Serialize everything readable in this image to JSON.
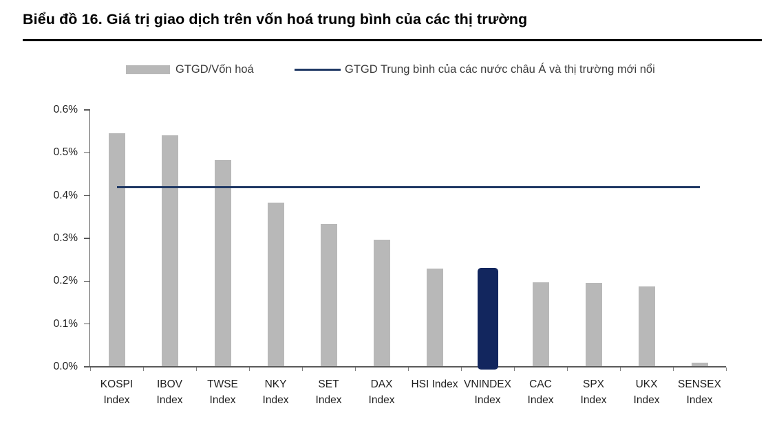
{
  "header": {
    "title": "Biểu đồ 16. Giá trị giao dịch trên vốn hoá trung bình của các thị trường"
  },
  "colors": {
    "bar": "#b8b8b8",
    "highlight_bar": "#12265e",
    "reference_line": "#1f3864",
    "axis": "#595959",
    "x_tick": "#808080",
    "text": "#1f1f1f"
  },
  "legend": [
    {
      "swatch": "bar-swatch",
      "label": "GTGD/Vốn hoá",
      "color": "#b8b8b8"
    },
    {
      "swatch": "line-swatch",
      "label": "GTGD Trung bình của các nước châu Á và thị trường mới nổi",
      "color": "#1f3864"
    }
  ],
  "chart_data": {
    "type": "bar",
    "title": "Biểu đồ 16. Giá trị giao dịch trên vốn hoá trung bình của các thị trường",
    "categories": [
      "KOSPI Index",
      "IBOV Index",
      "TWSE Index",
      "NKY Index",
      "SET Index",
      "DAX Index",
      "HSI Index",
      "VNINDEX Index",
      "CAC Index",
      "SPX Index",
      "UKX Index",
      "SENSEX Index"
    ],
    "category_label_lines": [
      [
        "KOSPI",
        "Index"
      ],
      [
        "IBOV",
        "Index"
      ],
      [
        "TWSE",
        "Index"
      ],
      [
        "NKY",
        "Index"
      ],
      [
        "SET",
        "Index"
      ],
      [
        "DAX",
        "Index"
      ],
      [
        "HSI Index"
      ],
      [
        "VNINDEX",
        "Index"
      ],
      [
        "CAC",
        "Index"
      ],
      [
        "SPX",
        "Index"
      ],
      [
        "UKX",
        "Index"
      ],
      [
        "SENSEX",
        "Index"
      ]
    ],
    "series_name": "GTGD/Vốn hoá",
    "values": [
      0.545,
      0.54,
      0.483,
      0.383,
      0.333,
      0.297,
      0.23,
      0.231,
      0.197,
      0.195,
      0.187,
      0.01
    ],
    "unit": "%",
    "highlight_index": 7,
    "reference_line": {
      "name": "GTGD Trung bình của các nước châu Á và thị trường mới nổi",
      "value": 0.42
    },
    "ylim": [
      0,
      0.6
    ],
    "ytick_step": 0.1,
    "ytick_labels": [
      "0.0%",
      "0.1%",
      "0.2%",
      "0.3%",
      "0.4%",
      "0.5%",
      "0.6%"
    ],
    "xlabel": "",
    "ylabel": "",
    "grid": false,
    "legend_position": "top"
  }
}
